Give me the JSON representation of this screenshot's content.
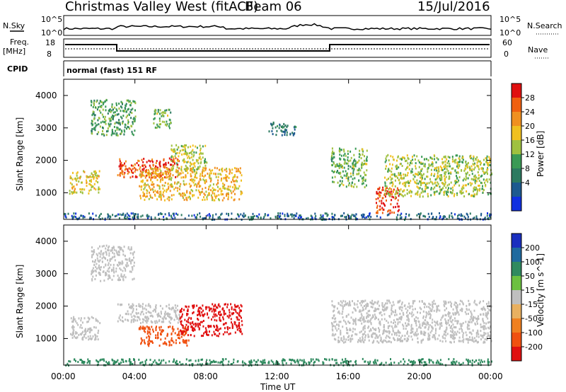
{
  "header": {
    "title": "Christmas Valley West (fitACF)",
    "beam": "Beam 06",
    "date": "15/Jul/2016"
  },
  "strips": {
    "nsky": "N.Sky",
    "nsky_ticks": [
      "10^5",
      "10^0"
    ],
    "nsearch": "N.Search",
    "freq": "Freq.",
    "freq_unit": "[MHz]",
    "freq_ticks": [
      "18",
      "8"
    ],
    "nave": "Nave",
    "nave_ticks": [
      "60",
      "0"
    ],
    "cpid": "CPID",
    "cpid_text": "normal (fast) 151 RF"
  },
  "colors": {
    "power": [
      "#1030e0",
      "#1d5a8f",
      "#2c7a60",
      "#3a9a55",
      "#9fc13f",
      "#f0c020",
      "#f09020",
      "#f06010",
      "#e01010"
    ],
    "velocity": [
      "#1a2fbf",
      "#1f6a9f",
      "#2f8a5f",
      "#6cc040",
      "#bfbfbf",
      "#e8b060",
      "#f08020",
      "#f05010",
      "#e01010"
    ]
  },
  "chart_data": [
    {
      "type": "heatmap",
      "title": "Power",
      "xlabel": "Time UT",
      "ylabel": "Slant Range [km]",
      "xlim": [
        "00:00",
        "00:00"
      ],
      "ylim": [
        180,
        4500
      ],
      "x_ticks": [
        "00:00",
        "04:00",
        "08:00",
        "12:00",
        "16:00",
        "20:00",
        "00:00"
      ],
      "y_ticks": [
        1000,
        2000,
        3000,
        4000
      ],
      "colorbar": {
        "label": "Power [dB]",
        "ticks": [
          "28",
          "24",
          "20",
          "16",
          "12",
          "8",
          "4"
        ]
      },
      "regions": [
        {
          "t0": 0.3,
          "t1": 2.0,
          "r0": 1000,
          "r1": 1700,
          "level": 18
        },
        {
          "t0": 3.0,
          "t1": 6.5,
          "r0": 1500,
          "r1": 2100,
          "level": 27
        },
        {
          "t0": 4.2,
          "t1": 10.0,
          "r0": 800,
          "r1": 1800,
          "level": 20
        },
        {
          "t0": 6.0,
          "t1": 8.0,
          "r0": 1700,
          "r1": 2500,
          "level": 17
        },
        {
          "t0": 1.5,
          "t1": 4.0,
          "r0": 2800,
          "r1": 3900,
          "level": 12
        },
        {
          "t0": 5.0,
          "t1": 6.0,
          "r0": 3000,
          "r1": 3600,
          "level": 14
        },
        {
          "t0": 11.5,
          "t1": 13.0,
          "r0": 2800,
          "r1": 3200,
          "level": 8
        },
        {
          "t0": 15.0,
          "t1": 17.0,
          "r0": 1200,
          "r1": 2400,
          "level": 14
        },
        {
          "t0": 17.5,
          "t1": 18.8,
          "r0": 400,
          "r1": 1200,
          "level": 28
        },
        {
          "t0": 18.0,
          "t1": 24.0,
          "r0": 900,
          "r1": 2200,
          "level": 16
        },
        {
          "t0": 0.0,
          "t1": 24.0,
          "r0": 200,
          "r1": 400,
          "level": 6
        }
      ]
    },
    {
      "type": "heatmap",
      "title": "Velocity",
      "xlabel": "Time UT",
      "ylabel": "Slant Range [km]",
      "xlim": [
        "00:00",
        "00:00"
      ],
      "ylim": [
        180,
        4500
      ],
      "x_ticks": [
        "00:00",
        "04:00",
        "08:00",
        "12:00",
        "16:00",
        "20:00",
        "00:00"
      ],
      "y_ticks": [
        1000,
        2000,
        3000,
        4000
      ],
      "colorbar": {
        "label": "Velocity [m s^-1]",
        "ticks": [
          "200",
          "100",
          "50",
          "15",
          "-15",
          "-50",
          "-100",
          "-200"
        ]
      },
      "regions": [
        {
          "t0": 0.3,
          "t1": 2.0,
          "r0": 1000,
          "r1": 1700,
          "level": 0
        },
        {
          "t0": 3.0,
          "t1": 6.5,
          "r0": 1500,
          "r1": 2100,
          "level": 0
        },
        {
          "t0": 4.2,
          "t1": 7.0,
          "r0": 800,
          "r1": 1400,
          "level": -80
        },
        {
          "t0": 6.5,
          "t1": 10.0,
          "r0": 1100,
          "r1": 2100,
          "level": -180
        },
        {
          "t0": 1.5,
          "t1": 4.0,
          "r0": 2800,
          "r1": 3900,
          "level": 0
        },
        {
          "t0": 15.0,
          "t1": 24.0,
          "r0": 900,
          "r1": 2200,
          "level": 0
        },
        {
          "t0": 0.0,
          "t1": 24.0,
          "r0": 200,
          "r1": 400,
          "level": 40
        }
      ]
    }
  ]
}
